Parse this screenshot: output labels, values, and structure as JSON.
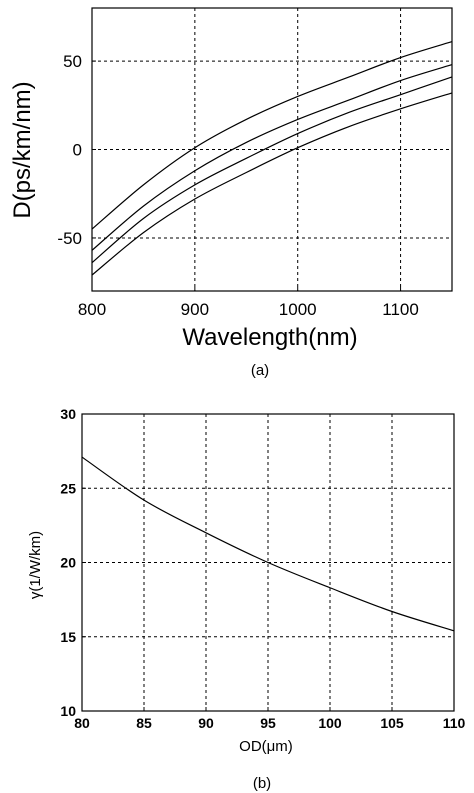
{
  "chart_data": [
    {
      "type": "line",
      "caption": "(a)",
      "xlabel": "Wavelength(nm)",
      "ylabel": "D(ps/km/nm)",
      "xlim": [
        800,
        1150
      ],
      "ylim": [
        -80,
        80
      ],
      "xticks": [
        800,
        900,
        1000,
        1100
      ],
      "yticks": [
        -50,
        0,
        50
      ],
      "grid": true,
      "series": [
        {
          "x": [
            800,
            850,
            900,
            950,
            1000,
            1050,
            1100,
            1150
          ],
          "values": [
            -45,
            -20,
            1,
            17,
            30,
            41,
            52,
            61
          ]
        },
        {
          "x": [
            800,
            850,
            900,
            950,
            1000,
            1050,
            1100,
            1150
          ],
          "values": [
            -57,
            -32,
            -12,
            4,
            17,
            28,
            39,
            48
          ]
        },
        {
          "x": [
            800,
            850,
            900,
            950,
            1000,
            1050,
            1100,
            1150
          ],
          "values": [
            -64,
            -39,
            -20,
            -5,
            9,
            21,
            31,
            41
          ]
        },
        {
          "x": [
            800,
            850,
            900,
            950,
            1000,
            1050,
            1100,
            1150
          ],
          "values": [
            -71,
            -47,
            -28,
            -13,
            1,
            13,
            23,
            32
          ]
        }
      ]
    },
    {
      "type": "line",
      "caption": "(b)",
      "xlabel": "OD(μm)",
      "ylabel": "γ(1/W/km)",
      "xlim": [
        80,
        110
      ],
      "ylim": [
        10,
        30
      ],
      "xticks": [
        80,
        85,
        90,
        95,
        100,
        105,
        110
      ],
      "yticks": [
        10,
        15,
        20,
        25,
        30
      ],
      "grid": true,
      "series": [
        {
          "x": [
            80,
            85,
            90,
            95,
            100,
            105,
            110
          ],
          "values": [
            27.1,
            24.2,
            22.0,
            20.0,
            18.3,
            16.7,
            15.4
          ]
        }
      ]
    }
  ]
}
